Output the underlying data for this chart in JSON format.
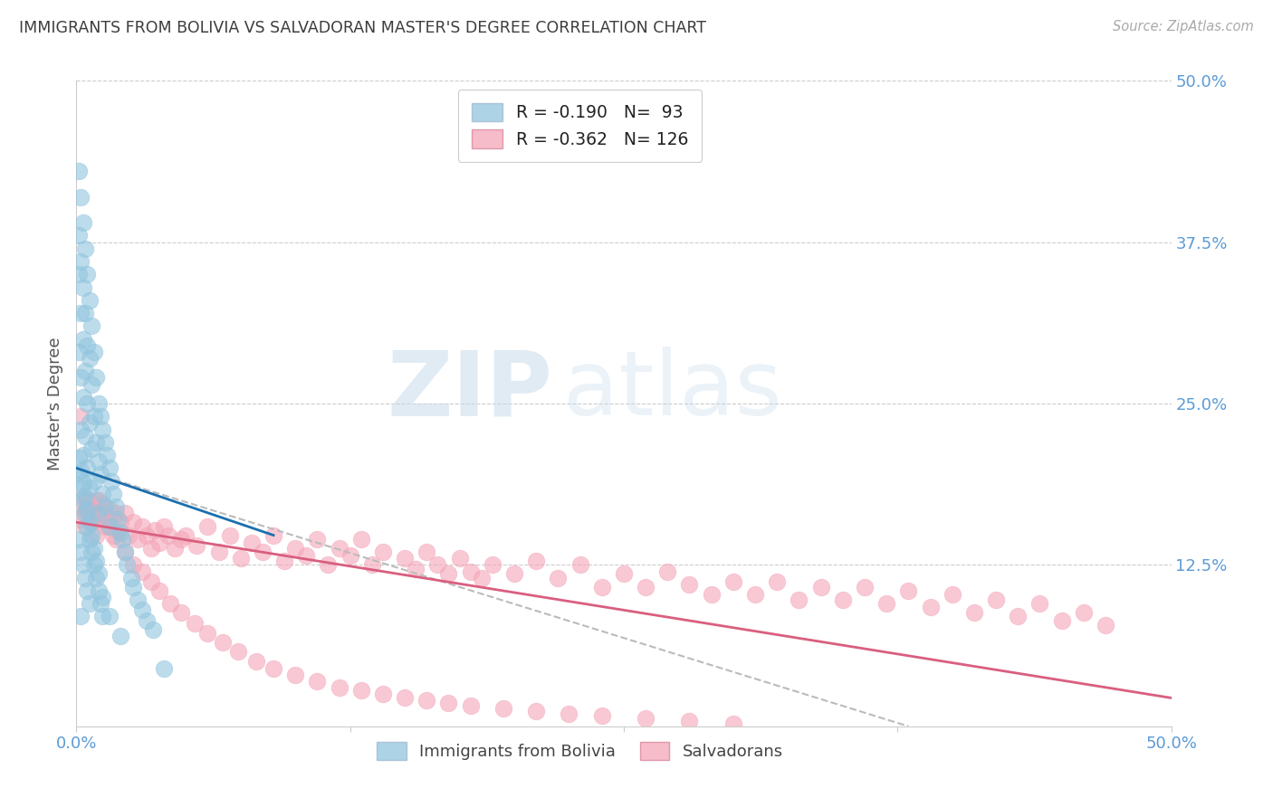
{
  "title": "IMMIGRANTS FROM BOLIVIA VS SALVADORAN MASTER'S DEGREE CORRELATION CHART",
  "source": "Source: ZipAtlas.com",
  "ylabel": "Master's Degree",
  "blue_color": "#92c5de",
  "pink_color": "#f4a6b8",
  "blue_line_color": "#1a6faf",
  "pink_line_color": "#d95f7f",
  "dashed_line_color": "#bbbbbb",
  "watermark_zip": "ZIP",
  "watermark_atlas": "atlas",
  "axis_tick_color": "#5b9bd5",
  "title_color": "#3d3d3d",
  "source_color": "#aaaaaa",
  "ylabel_color": "#555555",
  "background_color": "#ffffff",
  "grid_color": "#cccccc",
  "xlim": [
    0.0,
    0.5
  ],
  "ylim": [
    0.0,
    0.5
  ],
  "xtick_vals": [
    0.0,
    0.125,
    0.25,
    0.375,
    0.5
  ],
  "xtick_labels": [
    "0.0%",
    "",
    "",
    "",
    "50.0%"
  ],
  "ytick_vals": [
    0.0,
    0.125,
    0.25,
    0.375,
    0.5
  ],
  "ytick_labels_right": [
    "",
    "12.5%",
    "25.0%",
    "37.5%",
    "50.0%"
  ],
  "legend1_line1": "R = -0.190",
  "legend1_n1": "N=  93",
  "legend1_line2": "R = -0.362",
  "legend1_n2": "N= 126",
  "blue_x": [
    0.001,
    0.001,
    0.001,
    0.001,
    0.002,
    0.002,
    0.002,
    0.002,
    0.002,
    0.003,
    0.003,
    0.003,
    0.003,
    0.003,
    0.004,
    0.004,
    0.004,
    0.004,
    0.005,
    0.005,
    0.005,
    0.005,
    0.006,
    0.006,
    0.006,
    0.006,
    0.007,
    0.007,
    0.007,
    0.008,
    0.008,
    0.008,
    0.009,
    0.009,
    0.01,
    0.01,
    0.01,
    0.011,
    0.011,
    0.012,
    0.012,
    0.013,
    0.013,
    0.014,
    0.015,
    0.015,
    0.016,
    0.017,
    0.018,
    0.019,
    0.02,
    0.021,
    0.022,
    0.023,
    0.025,
    0.026,
    0.028,
    0.03,
    0.032,
    0.035,
    0.001,
    0.001,
    0.002,
    0.002,
    0.002,
    0.003,
    0.003,
    0.004,
    0.004,
    0.005,
    0.005,
    0.006,
    0.006,
    0.007,
    0.008,
    0.009,
    0.01,
    0.011,
    0.012,
    0.001,
    0.002,
    0.003,
    0.004,
    0.005,
    0.006,
    0.007,
    0.008,
    0.009,
    0.01,
    0.012,
    0.015,
    0.02,
    0.04
  ],
  "blue_y": [
    0.43,
    0.38,
    0.35,
    0.29,
    0.41,
    0.36,
    0.32,
    0.27,
    0.23,
    0.39,
    0.34,
    0.3,
    0.255,
    0.21,
    0.37,
    0.32,
    0.275,
    0.225,
    0.35,
    0.295,
    0.25,
    0.2,
    0.33,
    0.285,
    0.235,
    0.185,
    0.31,
    0.265,
    0.215,
    0.29,
    0.24,
    0.19,
    0.27,
    0.22,
    0.25,
    0.205,
    0.165,
    0.24,
    0.195,
    0.23,
    0.18,
    0.22,
    0.17,
    0.21,
    0.2,
    0.155,
    0.19,
    0.18,
    0.17,
    0.16,
    0.15,
    0.145,
    0.135,
    0.125,
    0.115,
    0.108,
    0.098,
    0.09,
    0.082,
    0.075,
    0.195,
    0.145,
    0.185,
    0.135,
    0.085,
    0.175,
    0.125,
    0.165,
    0.115,
    0.155,
    0.105,
    0.145,
    0.095,
    0.135,
    0.125,
    0.115,
    0.105,
    0.095,
    0.085,
    0.208,
    0.198,
    0.188,
    0.178,
    0.168,
    0.158,
    0.148,
    0.138,
    0.128,
    0.118,
    0.1,
    0.085,
    0.07,
    0.045
  ],
  "pink_x": [
    0.001,
    0.002,
    0.003,
    0.004,
    0.005,
    0.006,
    0.007,
    0.008,
    0.009,
    0.01,
    0.011,
    0.012,
    0.013,
    0.014,
    0.015,
    0.016,
    0.017,
    0.018,
    0.019,
    0.02,
    0.022,
    0.024,
    0.026,
    0.028,
    0.03,
    0.032,
    0.034,
    0.036,
    0.038,
    0.04,
    0.042,
    0.045,
    0.048,
    0.05,
    0.055,
    0.06,
    0.065,
    0.07,
    0.075,
    0.08,
    0.085,
    0.09,
    0.095,
    0.1,
    0.105,
    0.11,
    0.115,
    0.12,
    0.125,
    0.13,
    0.135,
    0.14,
    0.15,
    0.155,
    0.16,
    0.165,
    0.17,
    0.175,
    0.18,
    0.185,
    0.19,
    0.2,
    0.21,
    0.22,
    0.23,
    0.24,
    0.25,
    0.26,
    0.27,
    0.28,
    0.29,
    0.3,
    0.31,
    0.32,
    0.33,
    0.34,
    0.35,
    0.36,
    0.37,
    0.38,
    0.39,
    0.4,
    0.41,
    0.42,
    0.43,
    0.44,
    0.45,
    0.46,
    0.47,
    0.002,
    0.003,
    0.005,
    0.007,
    0.009,
    0.012,
    0.015,
    0.018,
    0.022,
    0.026,
    0.03,
    0.034,
    0.038,
    0.043,
    0.048,
    0.054,
    0.06,
    0.067,
    0.074,
    0.082,
    0.09,
    0.1,
    0.11,
    0.12,
    0.13,
    0.14,
    0.15,
    0.16,
    0.17,
    0.18,
    0.195,
    0.21,
    0.225,
    0.24,
    0.26,
    0.28,
    0.3
  ],
  "pink_y": [
    0.16,
    0.172,
    0.165,
    0.155,
    0.175,
    0.168,
    0.158,
    0.165,
    0.148,
    0.175,
    0.16,
    0.172,
    0.155,
    0.162,
    0.168,
    0.155,
    0.148,
    0.165,
    0.152,
    0.158,
    0.165,
    0.148,
    0.158,
    0.145,
    0.155,
    0.148,
    0.138,
    0.152,
    0.142,
    0.155,
    0.148,
    0.138,
    0.145,
    0.148,
    0.14,
    0.155,
    0.135,
    0.148,
    0.13,
    0.142,
    0.135,
    0.148,
    0.128,
    0.138,
    0.132,
    0.145,
    0.125,
    0.138,
    0.132,
    0.145,
    0.125,
    0.135,
    0.13,
    0.122,
    0.135,
    0.125,
    0.118,
    0.13,
    0.12,
    0.115,
    0.125,
    0.118,
    0.128,
    0.115,
    0.125,
    0.108,
    0.118,
    0.108,
    0.12,
    0.11,
    0.102,
    0.112,
    0.102,
    0.112,
    0.098,
    0.108,
    0.098,
    0.108,
    0.095,
    0.105,
    0.092,
    0.102,
    0.088,
    0.098,
    0.085,
    0.095,
    0.082,
    0.088,
    0.078,
    0.24,
    0.178,
    0.168,
    0.158,
    0.175,
    0.165,
    0.155,
    0.145,
    0.135,
    0.125,
    0.12,
    0.112,
    0.105,
    0.095,
    0.088,
    0.08,
    0.072,
    0.065,
    0.058,
    0.05,
    0.045,
    0.04,
    0.035,
    0.03,
    0.028,
    0.025,
    0.022,
    0.02,
    0.018,
    0.016,
    0.014,
    0.012,
    0.01,
    0.008,
    0.006,
    0.004,
    0.002
  ],
  "blue_trend": [
    0.0,
    0.09,
    0.2,
    0.148
  ],
  "pink_trend": [
    0.0,
    0.5,
    0.158,
    0.022
  ],
  "dash_trend": [
    0.0,
    0.38,
    0.2,
    0.0
  ]
}
